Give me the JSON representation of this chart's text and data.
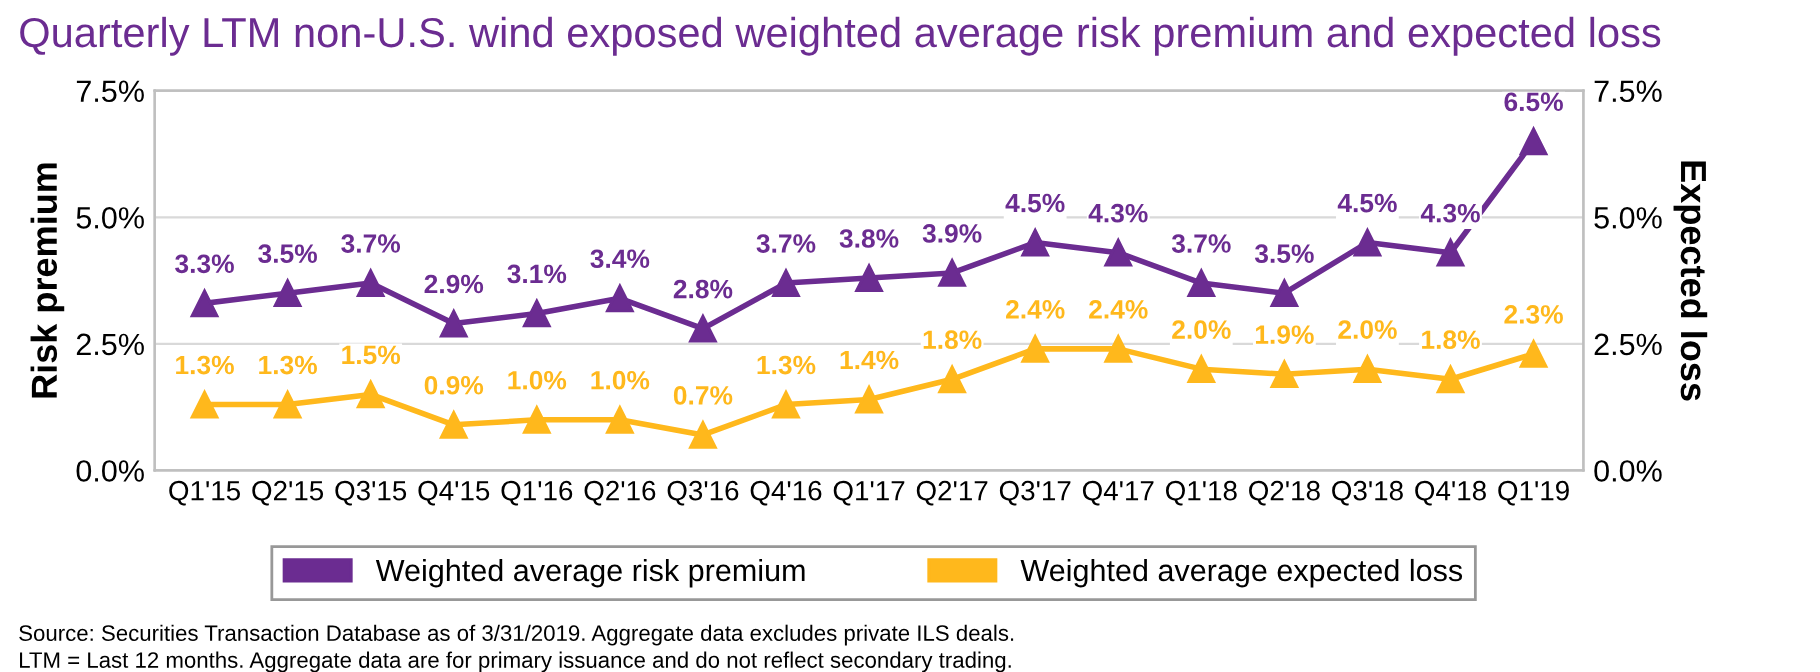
{
  "chart_data": {
    "type": "line",
    "title": "Quarterly LTM non-U.S. wind exposed weighted average risk premium and expected loss",
    "categories": [
      "Q1'15",
      "Q2'15",
      "Q3'15",
      "Q4'15",
      "Q1'16",
      "Q2'16",
      "Q3'16",
      "Q4'16",
      "Q1'17",
      "Q2'17",
      "Q3'17",
      "Q4'17",
      "Q1'18",
      "Q2'18",
      "Q3'18",
      "Q4'18",
      "Q1'19"
    ],
    "series": [
      {
        "name": "Weighted average risk premium",
        "color": "#6b2c91",
        "values": [
          3.3,
          3.5,
          3.7,
          2.9,
          3.1,
          3.4,
          2.8,
          3.7,
          3.8,
          3.9,
          4.5,
          4.3,
          3.7,
          3.5,
          4.5,
          4.3,
          6.5
        ],
        "value_labels": [
          "3.3%",
          "3.5%",
          "3.7%",
          "2.9%",
          "3.1%",
          "3.4%",
          "2.8%",
          "3.7%",
          "3.8%",
          "3.9%",
          "4.5%",
          "4.3%",
          "3.7%",
          "3.5%",
          "4.5%",
          "4.3%",
          "6.5%"
        ]
      },
      {
        "name": "Weighted average expected loss",
        "color": "#ffb81c",
        "values": [
          1.3,
          1.3,
          1.5,
          0.9,
          1.0,
          1.0,
          0.7,
          1.3,
          1.4,
          1.8,
          2.4,
          2.4,
          2.0,
          1.9,
          2.0,
          1.8,
          2.3
        ],
        "value_labels": [
          "1.3%",
          "1.3%",
          "1.5%",
          "0.9%",
          "1.0%",
          "1.0%",
          "0.7%",
          "1.3%",
          "1.4%",
          "1.8%",
          "2.4%",
          "2.4%",
          "2.0%",
          "1.9%",
          "2.0%",
          "1.8%",
          "2.3%"
        ]
      }
    ],
    "ylabel": "Risk premium",
    "y2label": "Expected loss",
    "ylim": [
      0,
      7.5
    ],
    "yticks": [
      {
        "value": 0,
        "label": "0.0%"
      },
      {
        "value": 2.5,
        "label": "2.5%"
      },
      {
        "value": 5,
        "label": "5.0%"
      },
      {
        "value": 7.5,
        "label": "7.5%"
      }
    ],
    "y2lim": [
      0,
      7.5
    ],
    "y2ticks": [
      {
        "value": 0,
        "label": "0.0%"
      },
      {
        "value": 2.5,
        "label": "2.5%"
      },
      {
        "value": 5,
        "label": "5.0%"
      },
      {
        "value": 7.5,
        "label": "7.5%"
      }
    ],
    "grid": "y",
    "marker": "triangle",
    "line_style": "solid",
    "legend": "bottom",
    "annotations": [
      "Source: Securities Transaction Database as of 3/31/2019. Aggregate data excludes private ILS deals.",
      "LTM = Last 12 months. Aggregate data are for primary issuance and do not reflect secondary trading."
    ]
  }
}
